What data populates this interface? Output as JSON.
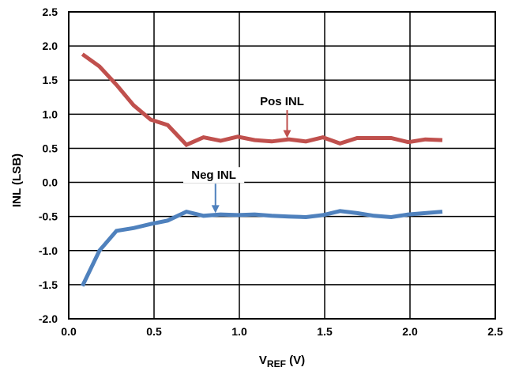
{
  "chart_data": {
    "type": "line",
    "xlabel_main": "V",
    "xlabel_sub": "REF",
    "xlabel_unit": " (V)",
    "ylabel": "INL (LSB)",
    "xlim": [
      0.0,
      2.5
    ],
    "ylim": [
      -2.0,
      2.5
    ],
    "xticks": [
      "0.0",
      "0.5",
      "1.0",
      "1.5",
      "2.0",
      "2.5"
    ],
    "yticks": [
      "2.5",
      "2.0",
      "1.5",
      "1.0",
      "0.5",
      "0.0",
      "-0.5",
      "-1.0",
      "-1.5",
      "-2.0"
    ],
    "grid": true,
    "series": [
      {
        "name": "Pos INL",
        "color": "#c0504d",
        "x": [
          0.08,
          0.18,
          0.28,
          0.38,
          0.48,
          0.58,
          0.69,
          0.79,
          0.89,
          0.99,
          1.09,
          1.19,
          1.29,
          1.39,
          1.49,
          1.59,
          1.69,
          1.79,
          1.89,
          1.99,
          2.09,
          2.19
        ],
        "y": [
          1.88,
          1.7,
          1.43,
          1.13,
          0.92,
          0.84,
          0.55,
          0.66,
          0.61,
          0.67,
          0.62,
          0.6,
          0.63,
          0.6,
          0.66,
          0.57,
          0.65,
          0.65,
          0.65,
          0.59,
          0.63,
          0.62
        ]
      },
      {
        "name": "Neg INL",
        "color": "#4f81bd",
        "x": [
          0.08,
          0.18,
          0.28,
          0.38,
          0.48,
          0.58,
          0.69,
          0.79,
          0.89,
          0.99,
          1.09,
          1.19,
          1.29,
          1.39,
          1.49,
          1.59,
          1.69,
          1.79,
          1.89,
          1.99,
          2.09,
          2.19
        ],
        "y": [
          -1.52,
          -1.0,
          -0.71,
          -0.67,
          -0.61,
          -0.56,
          -0.43,
          -0.49,
          -0.47,
          -0.48,
          -0.47,
          -0.49,
          -0.5,
          -0.51,
          -0.48,
          -0.42,
          -0.45,
          -0.49,
          -0.51,
          -0.47,
          -0.45,
          -0.43
        ]
      }
    ],
    "annotations": [
      {
        "text": "Pos INL",
        "label_x": 1.25,
        "label_y": 1.13,
        "arrow_to_x": 1.28,
        "arrow_to_y": 0.65
      },
      {
        "text": "Neg INL",
        "label_x": 0.85,
        "label_y": 0.05,
        "arrow_to_x": 0.86,
        "arrow_to_y": -0.45
      }
    ]
  }
}
